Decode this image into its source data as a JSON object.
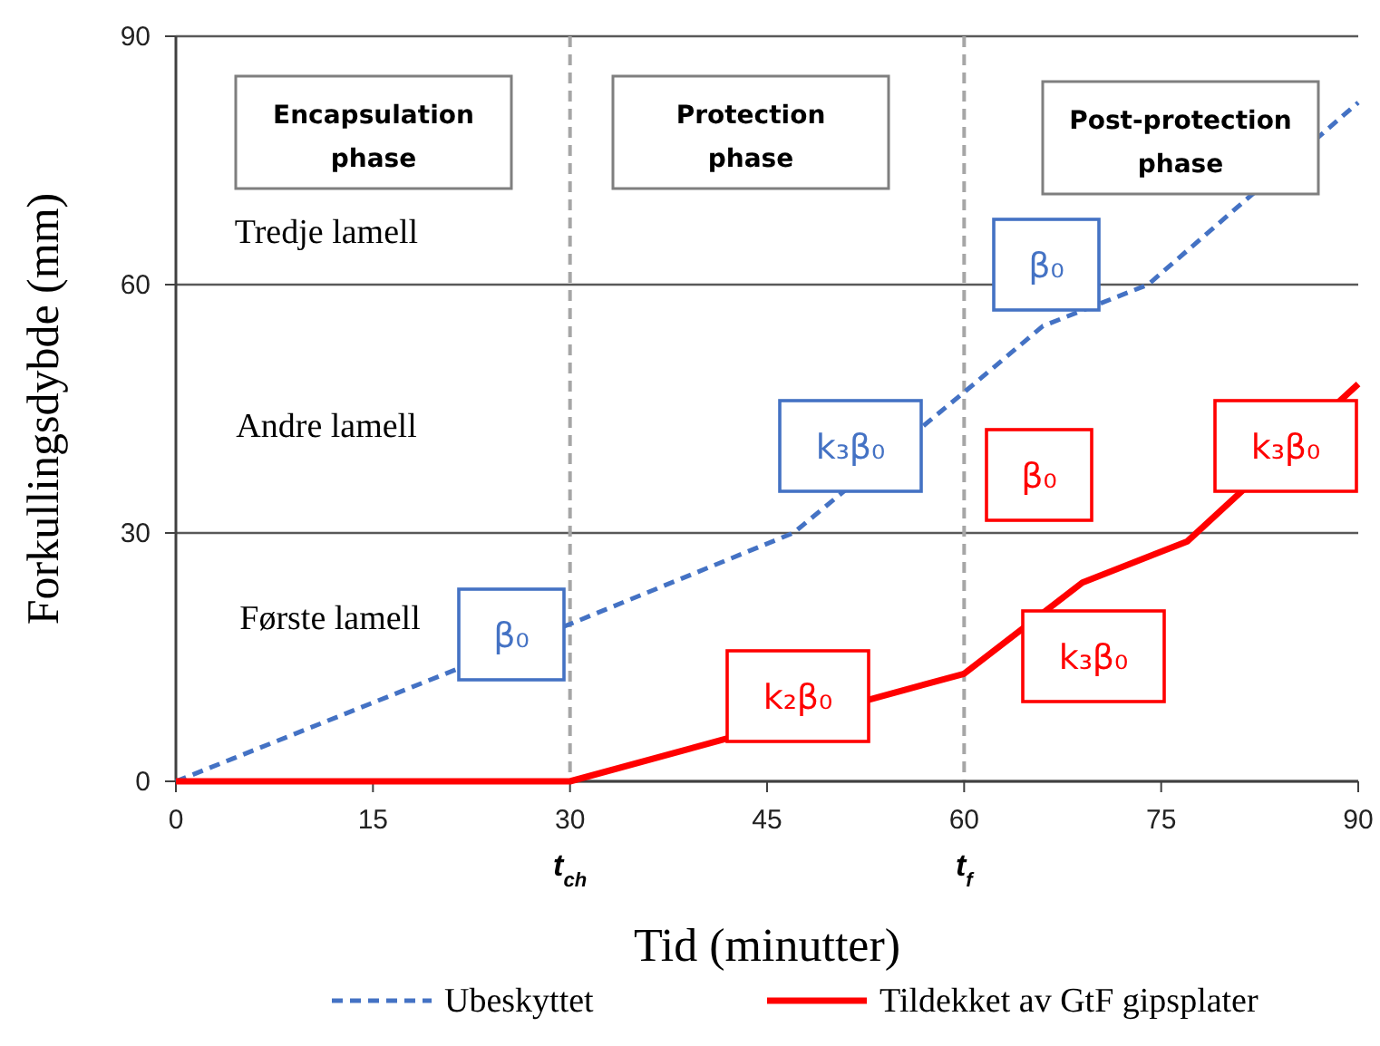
{
  "chart_data": {
    "type": "line",
    "xlabel": "Tid (minutter)",
    "ylabel": "Forkullingsdybde (mm)",
    "xlim": [
      0,
      90
    ],
    "xticks": [
      0,
      15,
      30,
      45,
      60,
      75,
      90
    ],
    "ylim": [
      0,
      90
    ],
    "yticks": [
      0,
      30,
      60,
      90
    ],
    "grid": "y",
    "legend": "bottom",
    "series": [
      {
        "name": "Ubeskyttet",
        "color": "#4472c4",
        "line_style": "dashed",
        "x": [
          0,
          30,
          47,
          60,
          66,
          74,
          90
        ],
        "values": [
          0,
          19,
          30,
          47,
          55,
          60,
          82
        ]
      },
      {
        "name": "Tildekket av GtF gipsplater",
        "color": "#ff0000",
        "line_style": "solid",
        "x": [
          0,
          30,
          60,
          69,
          77,
          90
        ],
        "values": [
          0,
          0,
          13,
          24,
          29,
          48
        ]
      }
    ],
    "ref_lines": [
      {
        "axis": "x",
        "value": 30,
        "label": "t$_{ch}$",
        "color": "#a6a6a6",
        "line_style": "dashed"
      },
      {
        "axis": "x",
        "value": 60,
        "label": "t$_{f}$",
        "color": "#a6a6a6",
        "line_style": "dashed"
      }
    ],
    "annotations": [
      "Encapsulation phase",
      "Protection phase",
      "Post-protection phase",
      "Tredje lamell",
      "Andre lamell",
      "Første lamell",
      "β₀",
      "k₃β₀",
      "β₀",
      "k₂β₀",
      "k₃β₀",
      "β₀",
      "k₃β₀"
    ]
  }
}
